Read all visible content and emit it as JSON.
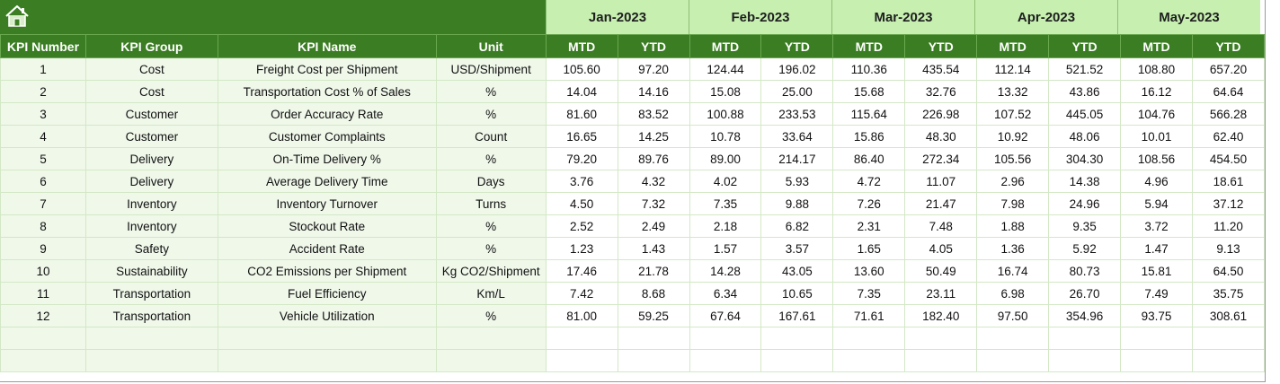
{
  "months": [
    "Jan-2023",
    "Feb-2023",
    "Mar-2023",
    "Apr-2023",
    "May-2023"
  ],
  "headers": {
    "kpi_number": "KPI Number",
    "kpi_group": "KPI Group",
    "kpi_name": "KPI Name",
    "unit": "Unit",
    "mtd": "MTD",
    "ytd": "YTD"
  },
  "icons": {
    "home": "home-icon"
  },
  "colors": {
    "header_green": "#3a7d22",
    "month_green": "#c6efb0",
    "row_tint": "#f0f8ea"
  },
  "rows": [
    {
      "num": "1",
      "group": "Cost",
      "name": "Freight Cost per Shipment",
      "unit": "USD/Shipment",
      "values": [
        "105.60",
        "97.20",
        "124.44",
        "196.02",
        "110.36",
        "435.54",
        "112.14",
        "521.52",
        "108.80",
        "657.20"
      ]
    },
    {
      "num": "2",
      "group": "Cost",
      "name": "Transportation Cost % of Sales",
      "unit": "%",
      "values": [
        "14.04",
        "14.16",
        "15.08",
        "25.00",
        "15.68",
        "32.76",
        "13.32",
        "43.86",
        "16.12",
        "64.64"
      ]
    },
    {
      "num": "3",
      "group": "Customer",
      "name": "Order Accuracy Rate",
      "unit": "%",
      "values": [
        "81.60",
        "83.52",
        "100.88",
        "233.53",
        "115.64",
        "226.98",
        "107.52",
        "445.05",
        "104.76",
        "566.28"
      ]
    },
    {
      "num": "4",
      "group": "Customer",
      "name": "Customer Complaints",
      "unit": "Count",
      "values": [
        "16.65",
        "14.25",
        "10.78",
        "33.64",
        "15.86",
        "48.30",
        "10.92",
        "48.06",
        "10.01",
        "62.40"
      ]
    },
    {
      "num": "5",
      "group": "Delivery",
      "name": "On-Time Delivery %",
      "unit": "%",
      "values": [
        "79.20",
        "89.76",
        "89.00",
        "214.17",
        "86.40",
        "272.34",
        "105.56",
        "304.30",
        "108.56",
        "454.50"
      ]
    },
    {
      "num": "6",
      "group": "Delivery",
      "name": "Average Delivery Time",
      "unit": "Days",
      "values": [
        "3.76",
        "4.32",
        "4.02",
        "5.93",
        "4.72",
        "11.07",
        "2.96",
        "14.38",
        "4.96",
        "18.61"
      ]
    },
    {
      "num": "7",
      "group": "Inventory",
      "name": "Inventory Turnover",
      "unit": "Turns",
      "values": [
        "4.50",
        "7.32",
        "7.35",
        "9.88",
        "7.26",
        "21.47",
        "7.98",
        "24.96",
        "5.94",
        "37.12"
      ]
    },
    {
      "num": "8",
      "group": "Inventory",
      "name": "Stockout Rate",
      "unit": "%",
      "values": [
        "2.52",
        "2.49",
        "2.18",
        "6.82",
        "2.31",
        "7.48",
        "1.88",
        "9.35",
        "3.72",
        "11.20"
      ]
    },
    {
      "num": "9",
      "group": "Safety",
      "name": "Accident Rate",
      "unit": "%",
      "values": [
        "1.23",
        "1.43",
        "1.57",
        "3.57",
        "1.65",
        "4.05",
        "1.36",
        "5.92",
        "1.47",
        "9.13"
      ]
    },
    {
      "num": "10",
      "group": "Sustainability",
      "name": "CO2 Emissions per Shipment",
      "unit": "Kg CO2/Shipment",
      "values": [
        "17.46",
        "21.78",
        "14.28",
        "43.05",
        "13.60",
        "50.49",
        "16.74",
        "80.73",
        "15.81",
        "64.50"
      ]
    },
    {
      "num": "11",
      "group": "Transportation",
      "name": "Fuel Efficiency",
      "unit": "Km/L",
      "values": [
        "7.42",
        "8.68",
        "6.34",
        "10.65",
        "7.35",
        "23.11",
        "6.98",
        "26.70",
        "7.49",
        "35.75"
      ]
    },
    {
      "num": "12",
      "group": "Transportation",
      "name": "Vehicle Utilization",
      "unit": "%",
      "values": [
        "81.00",
        "59.25",
        "67.64",
        "167.61",
        "71.61",
        "182.40",
        "97.50",
        "354.96",
        "93.75",
        "308.61"
      ]
    },
    {
      "num": "",
      "group": "",
      "name": "",
      "unit": "",
      "values": [
        "",
        "",
        "",
        "",
        "",
        "",
        "",
        "",
        "",
        ""
      ]
    },
    {
      "num": "",
      "group": "",
      "name": "",
      "unit": "",
      "values": [
        "",
        "",
        "",
        "",
        "",
        "",
        "",
        "",
        "",
        ""
      ]
    }
  ]
}
